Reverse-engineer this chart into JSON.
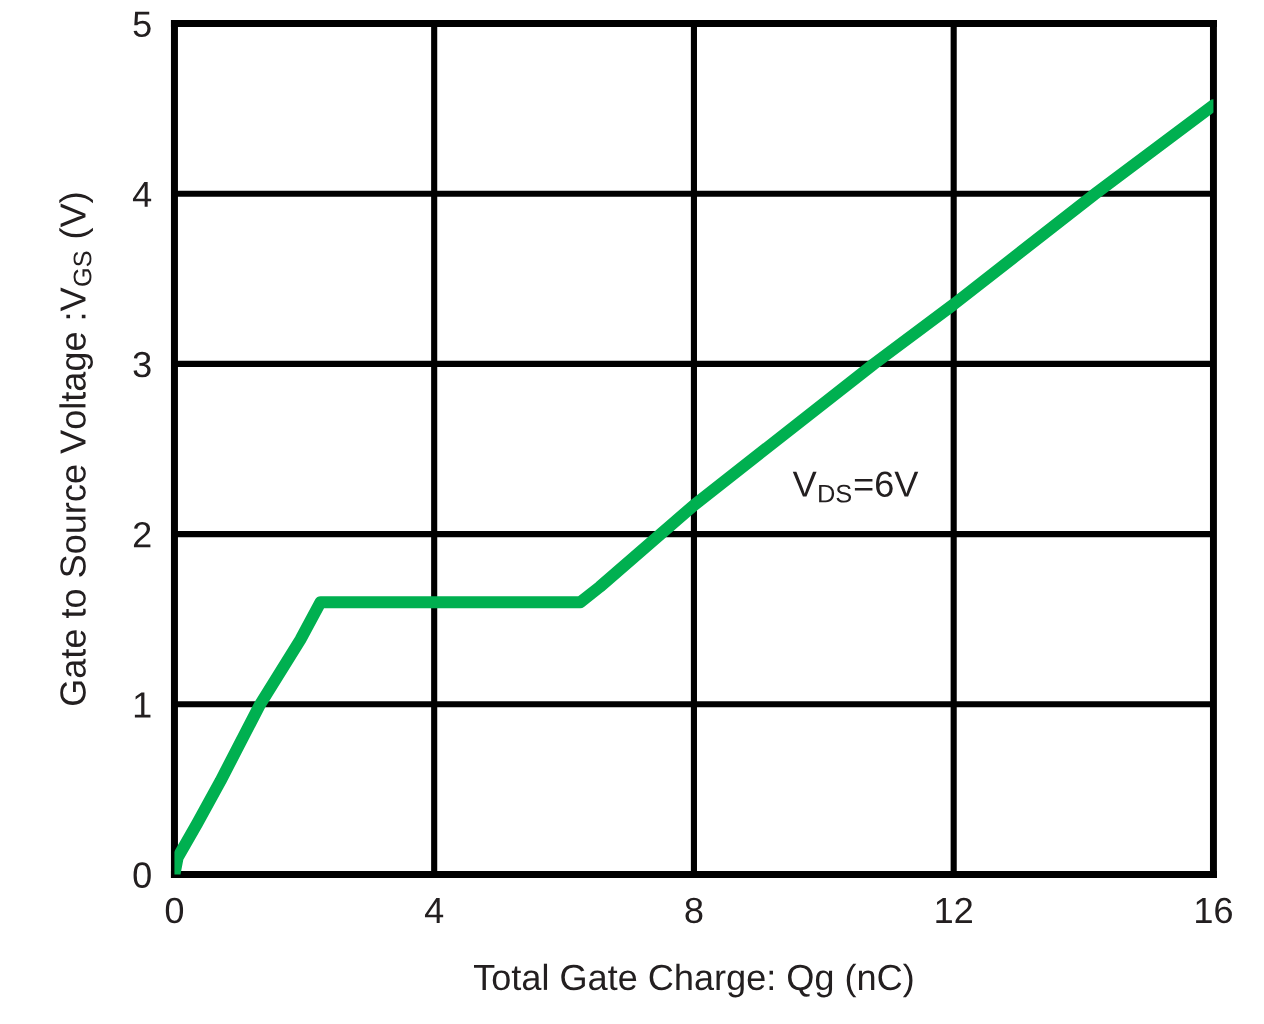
{
  "chart_data": {
    "type": "line",
    "xlabel": "Total Gate Charge: Qg (nC)",
    "ylabel": "Gate to Source Voltage :V$_{GS}$ (V)",
    "x": [
      0,
      0.05,
      0.35,
      0.71,
      1.32,
      1.94,
      2.25,
      6.25,
      6.55,
      8,
      10.77,
      12,
      14.18,
      16
    ],
    "series": [
      {
        "name": "V$_{DS}$=6V",
        "color": "#00b050",
        "values": [
          0,
          0.1,
          0.3,
          0.55,
          1.0,
          1.38,
          1.6,
          1.6,
          1.69,
          2.17,
          3.0,
          3.35,
          4.0,
          4.52
        ]
      }
    ],
    "xlim": [
      0,
      16
    ],
    "xticks": [
      0,
      4,
      8,
      12,
      16
    ],
    "ylim": [
      0,
      5
    ],
    "yticks": [
      0,
      1,
      2,
      3,
      4,
      5
    ],
    "grid": true,
    "legend": false,
    "marker": "none",
    "line_style": "solid"
  }
}
